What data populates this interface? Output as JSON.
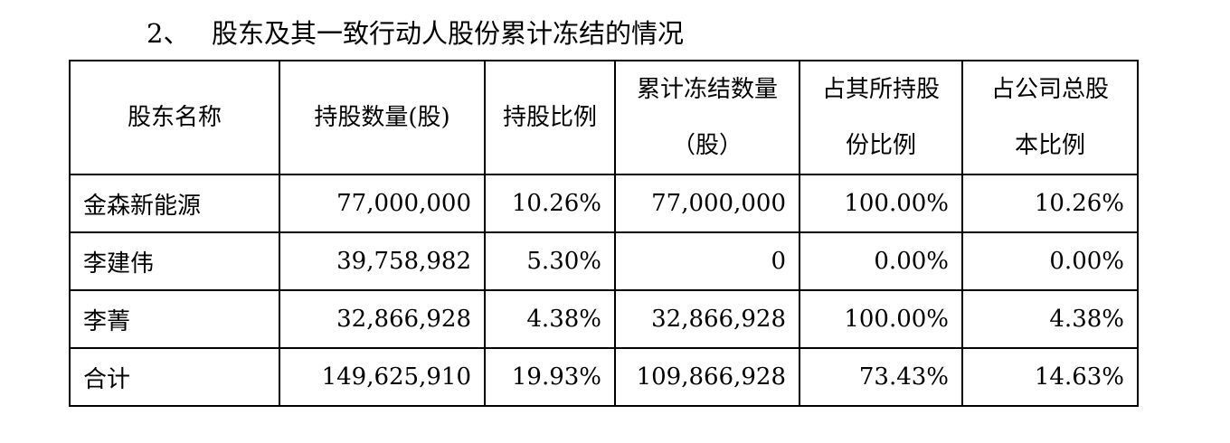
{
  "section": {
    "number": "2、",
    "title": "股东及其一致行动人股份累计冻结的情况"
  },
  "table": {
    "headers": [
      {
        "lines": [
          "股东名称"
        ]
      },
      {
        "lines": [
          "持股数量(股)"
        ]
      },
      {
        "lines": [
          "持股比例"
        ]
      },
      {
        "lines": [
          "累计冻结数量",
          "（股）"
        ]
      },
      {
        "lines": [
          "占其所持股",
          "份比例"
        ]
      },
      {
        "lines": [
          "占公司总股",
          "本比例"
        ]
      }
    ],
    "rows": [
      [
        "金森新能源",
        "77,000,000",
        "10.26%",
        "77,000,000",
        "100.00%",
        "10.26%"
      ],
      [
        "李建伟",
        "39,758,982",
        "5.30%",
        "0",
        "0.00%",
        "0.00%"
      ],
      [
        "李菁",
        "32,866,928",
        "4.38%",
        "32,866,928",
        "100.00%",
        "4.38%"
      ],
      [
        "合计",
        "149,625,910",
        "19.93%",
        "109,866,928",
        "73.43%",
        "14.63%"
      ]
    ]
  }
}
